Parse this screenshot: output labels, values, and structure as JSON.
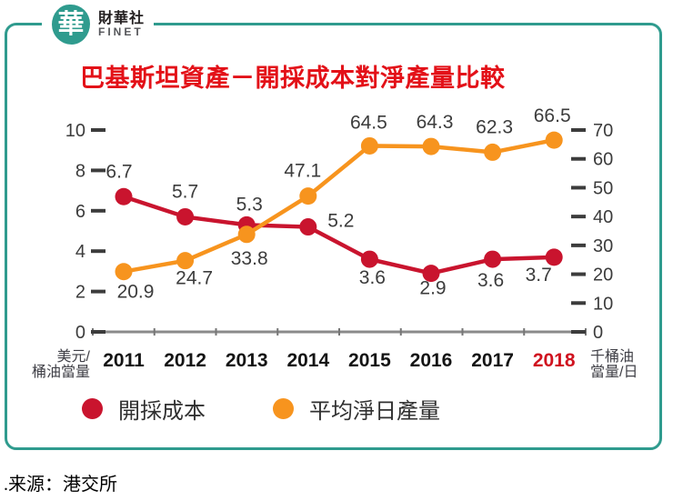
{
  "logo": {
    "mark": "華",
    "name_zh": "財華社",
    "name_en": "FINET"
  },
  "chart_data": {
    "type": "line",
    "title": "巴基斯坦資產－開採成本對淨產量比較",
    "categories": [
      "2011",
      "2012",
      "2013",
      "2014",
      "2015",
      "2016",
      "2017",
      "2018"
    ],
    "highlight_category": "2018",
    "series": [
      {
        "name": "開採成本",
        "axis": "left",
        "color": "#c9142e",
        "values": [
          6.7,
          5.7,
          5.3,
          5.2,
          3.6,
          2.9,
          3.6,
          3.7
        ]
      },
      {
        "name": "平均淨日產量",
        "axis": "right",
        "color": "#f7941e",
        "values": [
          20.9,
          24.7,
          33.8,
          47.1,
          64.5,
          64.3,
          62.3,
          66.5
        ]
      }
    ],
    "left_axis": {
      "range": [
        0,
        10
      ],
      "ticks": [
        0,
        2,
        4,
        6,
        8,
        10
      ],
      "unit_lines": [
        "美元/",
        "桶油當量"
      ]
    },
    "right_axis": {
      "range": [
        0,
        70
      ],
      "ticks": [
        0,
        10,
        20,
        30,
        40,
        50,
        60,
        70
      ],
      "unit_lines": [
        "千桶油",
        "當量/日"
      ]
    },
    "legend_position": "bottom",
    "grid": false,
    "label_offsets": [
      [
        [
          -5,
          -28
        ],
        [
          0,
          -28
        ],
        [
          3,
          -23
        ],
        [
          36,
          -7
        ],
        [
          3,
          20
        ],
        [
          2,
          16
        ],
        [
          -2,
          23
        ],
        [
          -17,
          19
        ]
      ],
      [
        [
          13,
          22
        ],
        [
          10,
          19
        ],
        [
          3,
          26
        ],
        [
          -6,
          -28
        ],
        [
          -1,
          -26
        ],
        [
          4,
          -27
        ],
        [
          2,
          -28
        ],
        [
          -2,
          -27
        ]
      ]
    ]
  },
  "source": ".来源：港交所",
  "colors": {
    "frame_teal": "#2f9b8e",
    "title_red": "#e31118",
    "highlight_red": "#d0121f",
    "axis_label": "#3c3c3c",
    "baseline_gray": "#8a8a8a"
  }
}
